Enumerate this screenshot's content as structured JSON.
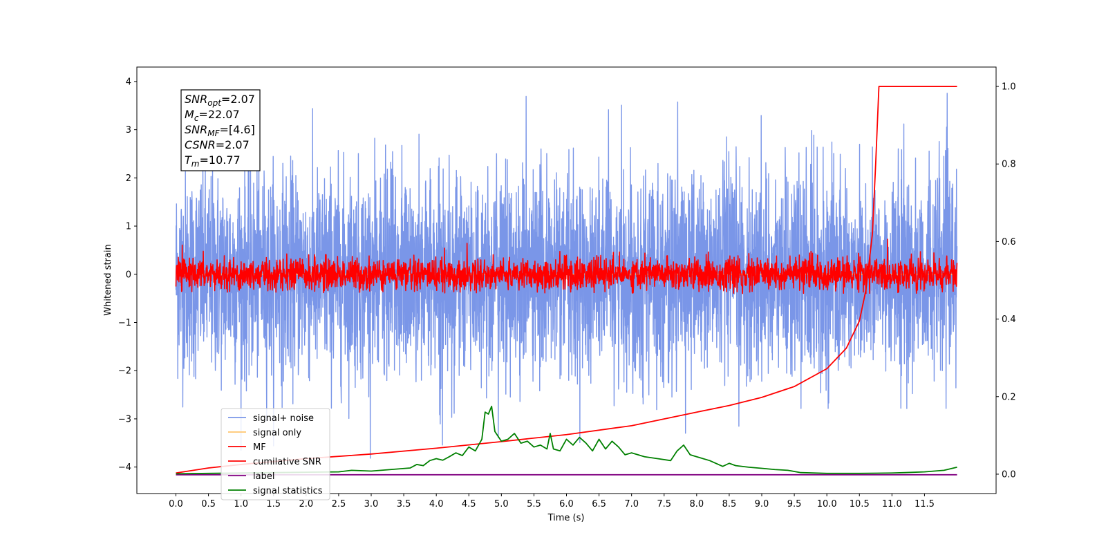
{
  "chart_data": {
    "type": "line",
    "xlabel": "Time (s)",
    "ylabel": "Whitened strain",
    "xlim": [
      -0.6,
      12.6
    ],
    "ylim": [
      -4.55,
      4.3
    ],
    "y2lim": [
      -0.05,
      1.05
    ],
    "x_ticks": [
      "0.0",
      "0.5",
      "1.0",
      "1.5",
      "2.0",
      "2.5",
      "3.0",
      "3.5",
      "4.0",
      "4.5",
      "5.0",
      "5.5",
      "6.0",
      "6.5",
      "7.0",
      "7.5",
      "8.0",
      "8.5",
      "9.0",
      "9.5",
      "10.0",
      "10.5",
      "11.0",
      "11.5"
    ],
    "y_ticks": [
      "4",
      "3",
      "2",
      "1",
      "0",
      "−1",
      "−2",
      "−3",
      "−4"
    ],
    "y2_ticks": [
      "1.0",
      "0.8",
      "0.6",
      "0.4",
      "0.2",
      "0.0"
    ],
    "grid": false,
    "legend_position": "lower-left",
    "annotation": [
      {
        "sym": "SNR",
        "sub": "opt",
        "value": "=2.07"
      },
      {
        "sym": "M",
        "sub": "c",
        "value": "=22.07"
      },
      {
        "sym": "SNR",
        "sub": "MF",
        "value": "=[4.6]"
      },
      {
        "sym": "CSNR",
        "sub": "",
        "value": "=2.07"
      },
      {
        "sym": "T",
        "sub": "m",
        "value": "=10.77"
      }
    ],
    "series": [
      {
        "name": "signal+ noise",
        "color": "#7a96e8",
        "axis": "left",
        "kind": "noise",
        "amplitude_std": 1.05,
        "peak_min": -3.9,
        "peak_max": 3.9
      },
      {
        "name": "signal only",
        "color": "#ffc66e",
        "axis": "left",
        "kind": "flat",
        "values_note": "",
        "level": 0
      },
      {
        "name": "MF",
        "color": "#ff0000",
        "axis": "left",
        "kind": "noise",
        "amplitude_std": 0.17,
        "peak_min": -0.4,
        "peak_max": 1.0
      },
      {
        "name": "cumilative SNR",
        "color": "#ff0000",
        "axis": "right",
        "x": [
          0.0,
          0.5,
          1.0,
          2.0,
          3.0,
          4.0,
          5.0,
          6.0,
          7.0,
          8.0,
          8.5,
          9.0,
          9.5,
          10.0,
          10.3,
          10.5,
          10.6,
          10.7,
          10.75,
          10.8,
          12.0
        ],
        "y": [
          0.003,
          0.016,
          0.025,
          0.04,
          0.052,
          0.067,
          0.084,
          0.102,
          0.125,
          0.16,
          0.177,
          0.198,
          0.226,
          0.272,
          0.325,
          0.395,
          0.475,
          0.62,
          0.8,
          1.0,
          1.0
        ]
      },
      {
        "name": "label",
        "color": "#800080",
        "axis": "left",
        "kind": "flat",
        "level": -4.16
      },
      {
        "name": "signal statistics",
        "color": "#008000",
        "axis": "right",
        "x": [
          0.0,
          0.5,
          1.0,
          1.5,
          2.0,
          2.5,
          2.7,
          3.0,
          3.3,
          3.6,
          3.7,
          3.8,
          3.9,
          4.0,
          4.1,
          4.2,
          4.3,
          4.4,
          4.5,
          4.6,
          4.7,
          4.75,
          4.8,
          4.85,
          4.9,
          5.0,
          5.1,
          5.2,
          5.3,
          5.4,
          5.5,
          5.6,
          5.7,
          5.75,
          5.8,
          5.9,
          6.0,
          6.1,
          6.2,
          6.3,
          6.4,
          6.5,
          6.6,
          6.7,
          6.8,
          6.9,
          7.0,
          7.2,
          7.4,
          7.6,
          7.7,
          7.8,
          7.9,
          8.0,
          8.2,
          8.4,
          8.5,
          8.6,
          8.8,
          9.0,
          9.2,
          9.4,
          9.6,
          10.0,
          10.5,
          11.0,
          11.2,
          11.5,
          11.8,
          12.0
        ],
        "y": [
          0.001,
          0.002,
          0.003,
          0.004,
          0.005,
          0.006,
          0.01,
          0.008,
          0.012,
          0.016,
          0.025,
          0.022,
          0.035,
          0.04,
          0.036,
          0.045,
          0.055,
          0.048,
          0.07,
          0.06,
          0.09,
          0.16,
          0.155,
          0.175,
          0.11,
          0.085,
          0.09,
          0.105,
          0.08,
          0.085,
          0.07,
          0.075,
          0.065,
          0.105,
          0.065,
          0.06,
          0.09,
          0.075,
          0.095,
          0.08,
          0.06,
          0.09,
          0.065,
          0.085,
          0.07,
          0.05,
          0.055,
          0.045,
          0.04,
          0.035,
          0.06,
          0.075,
          0.05,
          0.045,
          0.035,
          0.02,
          0.028,
          0.022,
          0.018,
          0.015,
          0.012,
          0.01,
          0.004,
          0.002,
          0.002,
          0.003,
          0.004,
          0.006,
          0.01,
          0.018
        ]
      }
    ]
  }
}
